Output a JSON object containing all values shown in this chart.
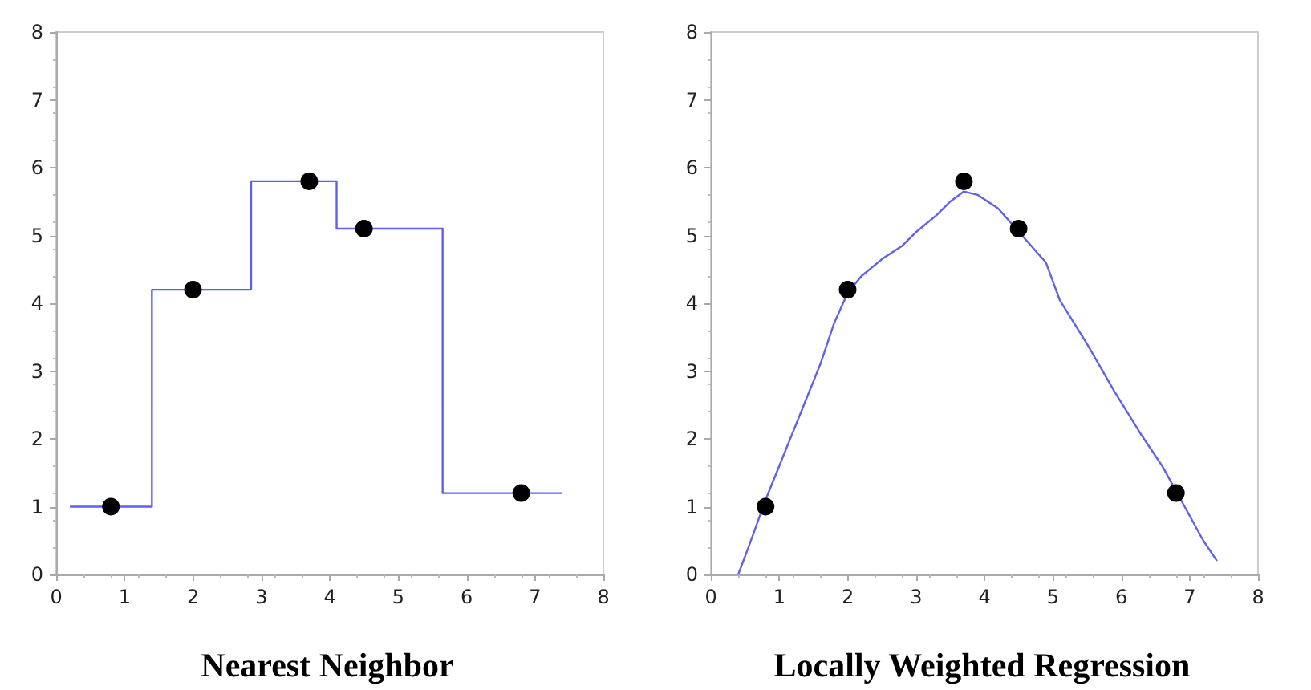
{
  "chart_data": [
    {
      "type": "scatter",
      "title": "Nearest Neighbor",
      "xlim": [
        0,
        8
      ],
      "ylim": [
        0,
        8
      ],
      "xticks": [
        0,
        1,
        2,
        3,
        4,
        5,
        6,
        7,
        8
      ],
      "yticks": [
        0,
        1,
        2,
        3,
        4,
        5,
        6,
        7,
        8
      ],
      "grid": false,
      "series": [
        {
          "type": "step",
          "color": "#6060f0",
          "marker": "none",
          "x": [
            0.2,
            1.4,
            2.85,
            4.1,
            5.65,
            7.4
          ],
          "values": [
            1,
            4.2,
            5.8,
            5.1,
            1.2,
            1.2
          ]
        },
        {
          "type": "scatter",
          "color": "#000000",
          "marker": "circle",
          "x": [
            0.8,
            2,
            3.7,
            4.5,
            6.8
          ],
          "values": [
            1,
            4.2,
            5.8,
            5.1,
            1.2
          ]
        }
      ]
    },
    {
      "type": "scatter",
      "title": "Locally Weighted Regression",
      "xlim": [
        0,
        8
      ],
      "ylim": [
        0,
        8
      ],
      "xticks": [
        0,
        1,
        2,
        3,
        4,
        5,
        6,
        7,
        8
      ],
      "yticks": [
        0,
        1,
        2,
        3,
        4,
        5,
        6,
        7,
        8
      ],
      "grid": false,
      "series": [
        {
          "type": "line",
          "color": "#6060f0",
          "marker": "none",
          "x": [
            0.4,
            0.55,
            0.8,
            1.0,
            1.4,
            1.6,
            1.8,
            2.0,
            2.2,
            2.5,
            2.8,
            3.0,
            3.3,
            3.5,
            3.7,
            3.9,
            4.2,
            4.9,
            5.1,
            5.5,
            5.9,
            6.3,
            6.6,
            6.9,
            7.2,
            7.4
          ],
          "values": [
            0,
            0.4,
            1.1,
            1.6,
            2.6,
            3.1,
            3.7,
            4.15,
            4.4,
            4.65,
            4.85,
            5.05,
            5.3,
            5.5,
            5.65,
            5.6,
            5.4,
            4.6,
            4.05,
            3.4,
            2.7,
            2.05,
            1.6,
            1.05,
            0.5,
            0.2
          ]
        },
        {
          "type": "scatter",
          "color": "#000000",
          "marker": "circle",
          "x": [
            0.8,
            2,
            3.7,
            4.5,
            6.8
          ],
          "values": [
            1,
            4.2,
            5.8,
            5.1,
            1.2
          ]
        }
      ]
    }
  ]
}
